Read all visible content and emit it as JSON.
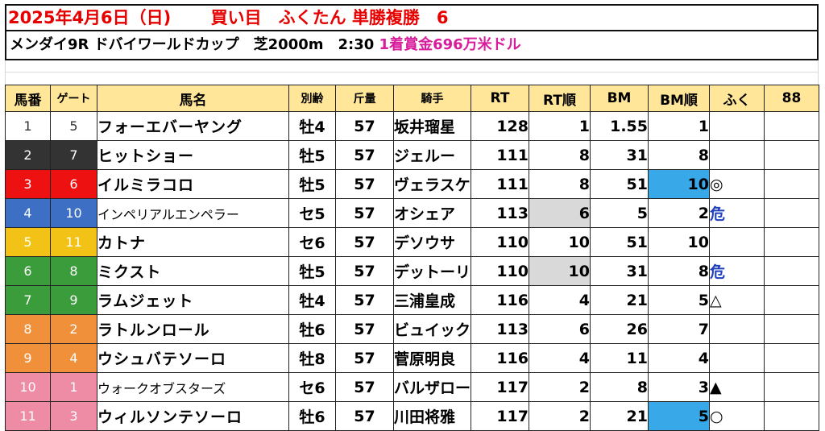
{
  "title": "2025年4月6日（日)　　 買い目　ふくたん 単勝複勝　6",
  "race": {
    "info": "メンダイ9R ドバイワールドカップ　芝2000m　2:30 ",
    "prize": "1着賞金696万米ドル"
  },
  "headers": [
    "馬番",
    "ゲート",
    "馬名",
    "別齢",
    "斤量",
    "騎手",
    "RT",
    "RT順",
    "BM",
    "BM順",
    "ふく",
    "88"
  ],
  "colors": {
    "header_bg": "#ffe699",
    "title": "#e60000",
    "prize": "#d81b9b",
    "mark_blue": "#1f3fbf",
    "highlight_gray": "#d9d9d9",
    "highlight_blue": "#38a8e8"
  },
  "rows": [
    {
      "num": "1",
      "gate": "5",
      "name": "フォーエバーヤング",
      "sexage": "牡4",
      "weight": "57",
      "jockey": "坂井瑠星",
      "rt": "128",
      "rt_rank": "1",
      "bm": "1.55",
      "bm_rank": "1",
      "fuku": "",
      "c88": "",
      "color": "#ffffff",
      "text": "#333333"
    },
    {
      "num": "2",
      "gate": "7",
      "name": "ヒットショー",
      "sexage": "牡5",
      "weight": "57",
      "jockey": "ジェルー",
      "rt": "111",
      "rt_rank": "8",
      "bm": "31",
      "bm_rank": "8",
      "fuku": "",
      "c88": "",
      "color": "#333333",
      "text": "#ffffff"
    },
    {
      "num": "3",
      "gate": "6",
      "name": "イルミラコロ",
      "sexage": "牡5",
      "weight": "57",
      "jockey": "ヴェラスケス",
      "rt": "111",
      "rt_rank": "8",
      "bm": "51",
      "bm_rank": "10",
      "fuku": "◎",
      "c88": "",
      "color": "#ee1111",
      "text": "#ffffff"
    },
    {
      "num": "4",
      "gate": "10",
      "name": "インペリアルエンペラー",
      "sexage": "セ5",
      "weight": "57",
      "jockey": "オシェア",
      "rt": "113",
      "rt_rank": "6",
      "bm": "5",
      "bm_rank": "2",
      "fuku": "危",
      "c88": "",
      "color": "#3d6fc4",
      "text": "#ffffff"
    },
    {
      "num": "5",
      "gate": "11",
      "name": "カトナ",
      "sexage": "セ6",
      "weight": "57",
      "jockey": "デソウサ",
      "rt": "110",
      "rt_rank": "10",
      "bm": "51",
      "bm_rank": "10",
      "fuku": "",
      "c88": "",
      "color": "#f2c316",
      "text": "#ffffff"
    },
    {
      "num": "6",
      "gate": "8",
      "name": "ミクスト",
      "sexage": "牡5",
      "weight": "57",
      "jockey": "デットーリ",
      "rt": "110",
      "rt_rank": "10",
      "bm": "31",
      "bm_rank": "8",
      "fuku": "危",
      "c88": "",
      "color": "#3a9c3a",
      "text": "#ffffff"
    },
    {
      "num": "7",
      "gate": "9",
      "name": "ラムジェット",
      "sexage": "牡4",
      "weight": "57",
      "jockey": "三浦皇成",
      "rt": "116",
      "rt_rank": "4",
      "bm": "21",
      "bm_rank": "5",
      "fuku": "△",
      "c88": "",
      "color": "#3a9c3a",
      "text": "#ffffff"
    },
    {
      "num": "8",
      "gate": "2",
      "name": "ラトルンロール",
      "sexage": "牡6",
      "weight": "57",
      "jockey": "ビュイック",
      "rt": "113",
      "rt_rank": "6",
      "bm": "26",
      "bm_rank": "7",
      "fuku": "",
      "c88": "",
      "color": "#f0903a",
      "text": "#ffffff"
    },
    {
      "num": "9",
      "gate": "4",
      "name": "ウシュバテソーロ",
      "sexage": "牡8",
      "weight": "57",
      "jockey": "菅原明良",
      "rt": "116",
      "rt_rank": "4",
      "bm": "11",
      "bm_rank": "4",
      "fuku": "",
      "c88": "",
      "color": "#f0903a",
      "text": "#ffffff"
    },
    {
      "num": "10",
      "gate": "1",
      "name": "ウォークオブスターズ",
      "sexage": "セ6",
      "weight": "57",
      "jockey": "バルザローナ",
      "rt": "117",
      "rt_rank": "2",
      "bm": "8",
      "bm_rank": "3",
      "fuku": "▲",
      "c88": "",
      "color": "#ee8ca6",
      "text": "#ffffff"
    },
    {
      "num": "11",
      "gate": "3",
      "name": "ウィルソンテソーロ",
      "sexage": "牡6",
      "weight": "57",
      "jockey": "川田将雅",
      "rt": "117",
      "rt_rank": "2",
      "bm": "21",
      "bm_rank": "5",
      "fuku": "○",
      "c88": "",
      "color": "#ee8ca6",
      "text": "#ffffff"
    }
  ],
  "highlights": {
    "rt_rank_gray": [
      3,
      5
    ],
    "bm_rank_blue": [
      2,
      10
    ],
    "thin_names": [
      3,
      9
    ],
    "blue_marks": [
      3,
      5
    ]
  }
}
